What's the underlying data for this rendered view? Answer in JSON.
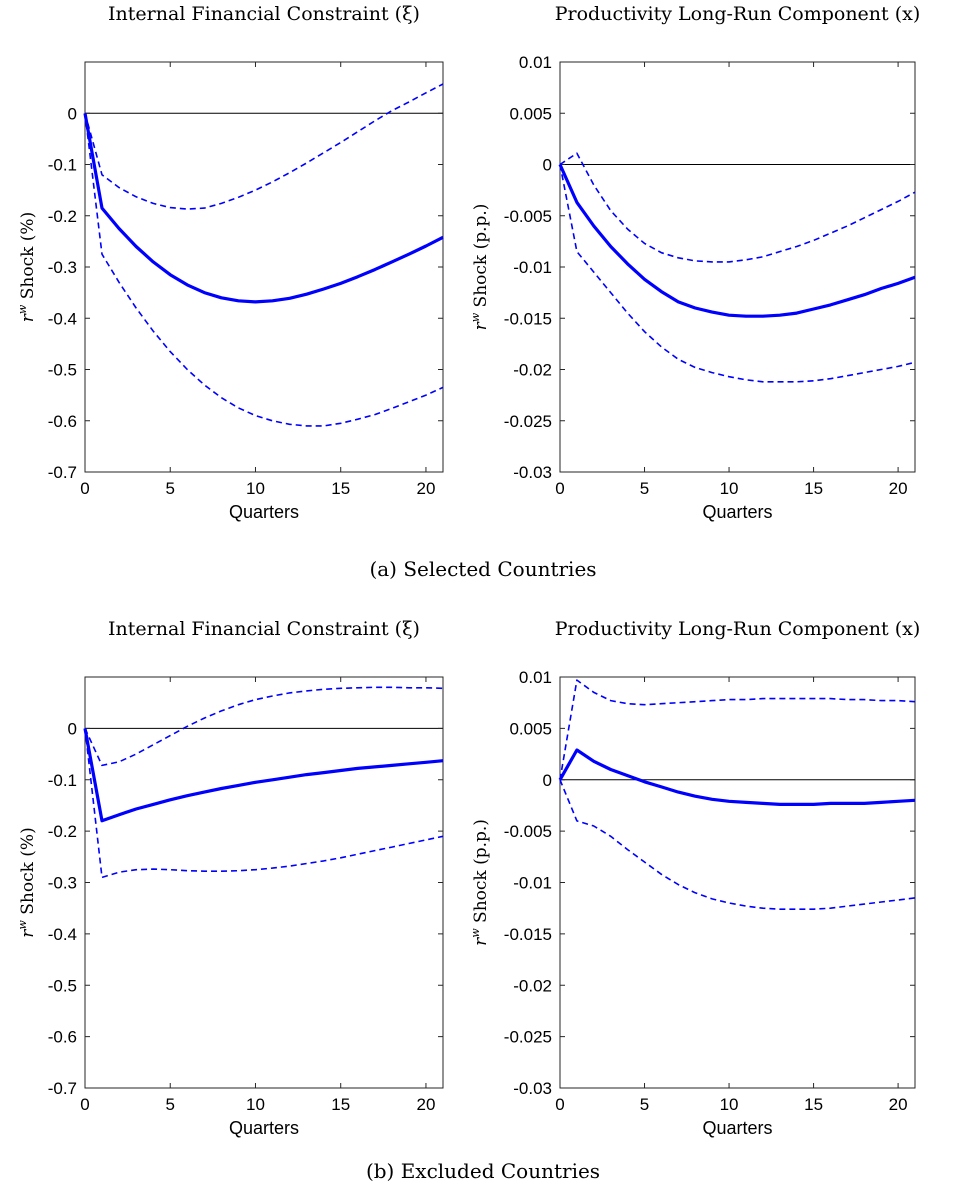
{
  "captions": [
    "(a) Selected Countries",
    "(b) Excluded Countries"
  ],
  "chart_data": [
    {
      "type": "line",
      "title": "Internal Financial Constraint (ξ)",
      "xlabel": "Quarters",
      "ylabel": "r^w Shock (%)",
      "ylabel_base": "r",
      "ylabel_sup": "w",
      "ylabel_rest": " Shock (%)",
      "xlim": [
        0,
        21
      ],
      "ylim": [
        -0.7,
        0.1
      ],
      "xticks": [
        0,
        5,
        10,
        15,
        20
      ],
      "xtick_labels": [
        "0",
        "5",
        "10",
        "15",
        "20"
      ],
      "yticks": [
        0,
        -0.1,
        -0.2,
        -0.3,
        -0.4,
        -0.5,
        -0.6,
        -0.7
      ],
      "ytick_labels": [
        "0",
        "-0.1",
        "-0.2",
        "-0.3",
        "-0.4",
        "-0.5",
        "-0.6",
        "-0.7"
      ],
      "zero_line": true,
      "x": [
        0,
        1,
        2,
        3,
        4,
        5,
        6,
        7,
        8,
        9,
        10,
        11,
        12,
        13,
        14,
        15,
        16,
        17,
        18,
        19,
        20,
        21
      ],
      "series": [
        {
          "style": "solid",
          "color": "#0000ff",
          "values": [
            0,
            -0.185,
            -0.225,
            -0.26,
            -0.29,
            -0.315,
            -0.335,
            -0.35,
            -0.36,
            -0.366,
            -0.368,
            -0.366,
            -0.361,
            -0.353,
            -0.343,
            -0.332,
            -0.319,
            -0.305,
            -0.29,
            -0.275,
            -0.259,
            -0.242
          ]
        },
        {
          "style": "dashed",
          "color": "#0000ff",
          "values": [
            0,
            -0.12,
            -0.145,
            -0.163,
            -0.176,
            -0.184,
            -0.187,
            -0.185,
            -0.176,
            -0.164,
            -0.15,
            -0.134,
            -0.116,
            -0.097,
            -0.077,
            -0.057,
            -0.036,
            -0.015,
            0.005,
            0.022,
            0.04,
            0.057
          ]
        },
        {
          "style": "dashed",
          "color": "#0000ff",
          "values": [
            0,
            -0.275,
            -0.33,
            -0.38,
            -0.425,
            -0.465,
            -0.5,
            -0.53,
            -0.555,
            -0.575,
            -0.59,
            -0.6,
            -0.607,
            -0.61,
            -0.61,
            -0.605,
            -0.597,
            -0.588,
            -0.576,
            -0.563,
            -0.55,
            -0.535
          ]
        }
      ]
    },
    {
      "type": "line",
      "title": "Productivity Long-Run Component (x)",
      "xlabel": "Quarters",
      "ylabel": "r^w Shock (p.p.)",
      "ylabel_base": "r",
      "ylabel_sup": "w",
      "ylabel_rest": " Shock (p.p.)",
      "xlim": [
        0,
        21
      ],
      "ylim": [
        -0.03,
        0.01
      ],
      "xticks": [
        0,
        5,
        10,
        15,
        20
      ],
      "xtick_labels": [
        "0",
        "5",
        "10",
        "15",
        "20"
      ],
      "yticks": [
        0.01,
        0.005,
        0,
        -0.005,
        -0.01,
        -0.015,
        -0.02,
        -0.025,
        -0.03
      ],
      "ytick_labels": [
        "0.01",
        "0.005",
        "0",
        "-0.005",
        "-0.01",
        "-0.015",
        "-0.02",
        "-0.025",
        "-0.03"
      ],
      "zero_line": true,
      "x": [
        0,
        1,
        2,
        3,
        4,
        5,
        6,
        7,
        8,
        9,
        10,
        11,
        12,
        13,
        14,
        15,
        16,
        17,
        18,
        19,
        20,
        21
      ],
      "series": [
        {
          "style": "solid",
          "color": "#0000ff",
          "values": [
            0,
            -0.0037,
            -0.006,
            -0.008,
            -0.0097,
            -0.0112,
            -0.0124,
            -0.0134,
            -0.014,
            -0.0144,
            -0.0147,
            -0.0148,
            -0.0148,
            -0.0147,
            -0.0145,
            -0.0141,
            -0.0137,
            -0.0132,
            -0.0127,
            -0.0121,
            -0.0116,
            -0.011
          ]
        },
        {
          "style": "dashed",
          "color": "#0000ff",
          "values": [
            0,
            0.0011,
            -0.002,
            -0.0045,
            -0.0063,
            -0.0077,
            -0.0086,
            -0.0091,
            -0.0094,
            -0.0095,
            -0.0095,
            -0.0093,
            -0.009,
            -0.0085,
            -0.008,
            -0.0074,
            -0.0067,
            -0.006,
            -0.0052,
            -0.0044,
            -0.0036,
            -0.0027
          ]
        },
        {
          "style": "dashed",
          "color": "#0000ff",
          "values": [
            0,
            -0.0085,
            -0.0105,
            -0.0125,
            -0.0145,
            -0.0163,
            -0.0178,
            -0.019,
            -0.0198,
            -0.0203,
            -0.0207,
            -0.021,
            -0.0212,
            -0.0212,
            -0.0212,
            -0.0211,
            -0.0209,
            -0.0206,
            -0.0203,
            -0.02,
            -0.0197,
            -0.0193
          ]
        }
      ]
    },
    {
      "type": "line",
      "title": "Internal Financial Constraint (ξ)",
      "xlabel": "Quarters",
      "ylabel": "r^w Shock (%)",
      "ylabel_base": "r",
      "ylabel_sup": "w",
      "ylabel_rest": " Shock (%)",
      "xlim": [
        0,
        21
      ],
      "ylim": [
        -0.7,
        0.1
      ],
      "xticks": [
        0,
        5,
        10,
        15,
        20
      ],
      "xtick_labels": [
        "0",
        "5",
        "10",
        "15",
        "20"
      ],
      "yticks": [
        0,
        -0.1,
        -0.2,
        -0.3,
        -0.4,
        -0.5,
        -0.6,
        -0.7
      ],
      "ytick_labels": [
        "0",
        "-0.1",
        "-0.2",
        "-0.3",
        "-0.4",
        "-0.5",
        "-0.6",
        "-0.7"
      ],
      "zero_line": true,
      "x": [
        0,
        1,
        2,
        3,
        4,
        5,
        6,
        7,
        8,
        9,
        10,
        11,
        12,
        13,
        14,
        15,
        16,
        17,
        18,
        19,
        20,
        21
      ],
      "series": [
        {
          "style": "solid",
          "color": "#0000ff",
          "values": [
            0,
            -0.18,
            -0.168,
            -0.157,
            -0.148,
            -0.139,
            -0.131,
            -0.124,
            -0.117,
            -0.111,
            -0.105,
            -0.1,
            -0.095,
            -0.09,
            -0.086,
            -0.082,
            -0.078,
            -0.075,
            -0.072,
            -0.069,
            -0.066,
            -0.063
          ]
        },
        {
          "style": "dashed",
          "color": "#0000ff",
          "values": [
            0,
            -0.072,
            -0.065,
            -0.05,
            -0.032,
            -0.014,
            0.004,
            0.02,
            0.034,
            0.046,
            0.056,
            0.063,
            0.069,
            0.073,
            0.076,
            0.078,
            0.079,
            0.08,
            0.08,
            0.079,
            0.079,
            0.078
          ]
        },
        {
          "style": "dashed",
          "color": "#0000ff",
          "values": [
            0,
            -0.29,
            -0.28,
            -0.275,
            -0.274,
            -0.275,
            -0.277,
            -0.278,
            -0.278,
            -0.277,
            -0.275,
            -0.272,
            -0.268,
            -0.263,
            -0.258,
            -0.252,
            -0.245,
            -0.238,
            -0.231,
            -0.224,
            -0.217,
            -0.21
          ]
        }
      ]
    },
    {
      "type": "line",
      "title": "Productivity Long-Run Component (x)",
      "xlabel": "Quarters",
      "ylabel": "r^w Shock (p.p.)",
      "ylabel_base": "r",
      "ylabel_sup": "w",
      "ylabel_rest": " Shock (p.p.)",
      "xlim": [
        0,
        21
      ],
      "ylim": [
        -0.03,
        0.01
      ],
      "xticks": [
        0,
        5,
        10,
        15,
        20
      ],
      "xtick_labels": [
        "0",
        "5",
        "10",
        "15",
        "20"
      ],
      "yticks": [
        0.01,
        0.005,
        0,
        -0.005,
        -0.01,
        -0.015,
        -0.02,
        -0.025,
        -0.03
      ],
      "ytick_labels": [
        "0.01",
        "0.005",
        "0",
        "-0.005",
        "-0.01",
        "-0.015",
        "-0.02",
        "-0.025",
        "-0.03"
      ],
      "zero_line": true,
      "x": [
        0,
        1,
        2,
        3,
        4,
        5,
        6,
        7,
        8,
        9,
        10,
        11,
        12,
        13,
        14,
        15,
        16,
        17,
        18,
        19,
        20,
        21
      ],
      "series": [
        {
          "style": "solid",
          "color": "#0000ff",
          "values": [
            0,
            0.0029,
            0.0018,
            0.001,
            0.0004,
            -0.0002,
            -0.0007,
            -0.0012,
            -0.0016,
            -0.0019,
            -0.0021,
            -0.0022,
            -0.0023,
            -0.0024,
            -0.0024,
            -0.0024,
            -0.0023,
            -0.0023,
            -0.0023,
            -0.0022,
            -0.0021,
            -0.002
          ]
        },
        {
          "style": "dashed",
          "color": "#0000ff",
          "values": [
            0,
            0.0097,
            0.0085,
            0.0077,
            0.0074,
            0.0073,
            0.0074,
            0.0075,
            0.0076,
            0.0077,
            0.0078,
            0.0078,
            0.0079,
            0.0079,
            0.0079,
            0.0079,
            0.0079,
            0.0078,
            0.0078,
            0.0077,
            0.0077,
            0.0076
          ]
        },
        {
          "style": "dashed",
          "color": "#0000ff",
          "values": [
            0,
            -0.004,
            -0.0045,
            -0.0055,
            -0.0068,
            -0.008,
            -0.0092,
            -0.0102,
            -0.011,
            -0.0116,
            -0.012,
            -0.0123,
            -0.0125,
            -0.0126,
            -0.0126,
            -0.0126,
            -0.0125,
            -0.0123,
            -0.0121,
            -0.0119,
            -0.0117,
            -0.0115
          ]
        }
      ]
    }
  ]
}
